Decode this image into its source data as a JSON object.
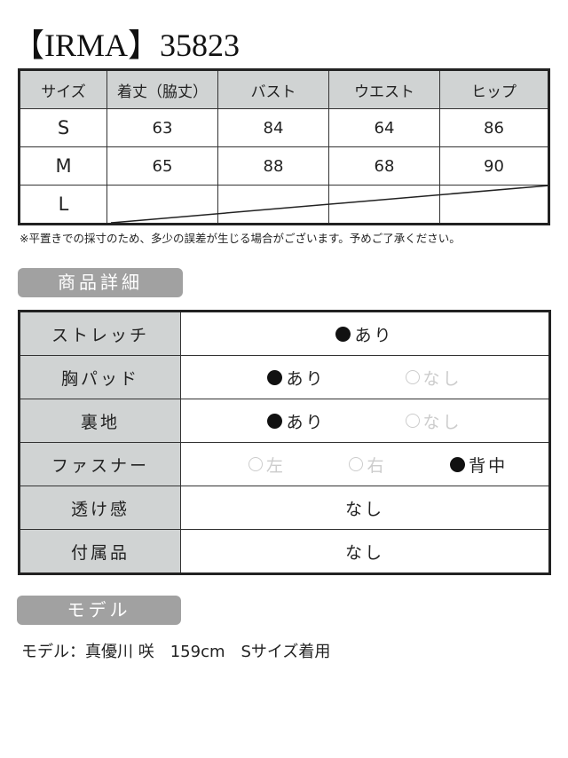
{
  "title": "【IRMA】35823",
  "size_table": {
    "headers": [
      "サイズ",
      "着丈（脇丈）",
      "バスト",
      "ウエスト",
      "ヒップ"
    ],
    "rows": [
      {
        "size": "S",
        "values": [
          "63",
          "84",
          "64",
          "86"
        ]
      },
      {
        "size": "M",
        "values": [
          "65",
          "88",
          "68",
          "90"
        ]
      },
      {
        "size": "L",
        "values": [
          "",
          "",
          "",
          ""
        ]
      }
    ]
  },
  "note": "※平置きでの採寸のため、多少の誤差が生じる場合がございます。予めご了承ください。",
  "details": {
    "heading": "商品詳細",
    "rows": [
      {
        "label": "ストレッチ",
        "options": [
          {
            "text": "あり",
            "selected": true
          }
        ]
      },
      {
        "label": "胸パッド",
        "options": [
          {
            "text": "あり",
            "selected": true
          },
          {
            "text": "なし",
            "selected": false
          }
        ]
      },
      {
        "label": "裏地",
        "options": [
          {
            "text": "あり",
            "selected": true
          },
          {
            "text": "なし",
            "selected": false
          }
        ]
      },
      {
        "label": "ファスナー",
        "options": [
          {
            "text": "左",
            "selected": false
          },
          {
            "text": "右",
            "selected": false
          },
          {
            "text": "背中",
            "selected": true
          }
        ]
      },
      {
        "label": "透け感",
        "value": "なし"
      },
      {
        "label": "付属品",
        "value": "なし"
      }
    ]
  },
  "model": {
    "heading": "モデル",
    "text": "モデル：真優川 咲　159cm　Sサイズ着用"
  },
  "colors": {
    "header_gray": "#d0d3d3",
    "badge_gray": "#a1a1a1"
  }
}
